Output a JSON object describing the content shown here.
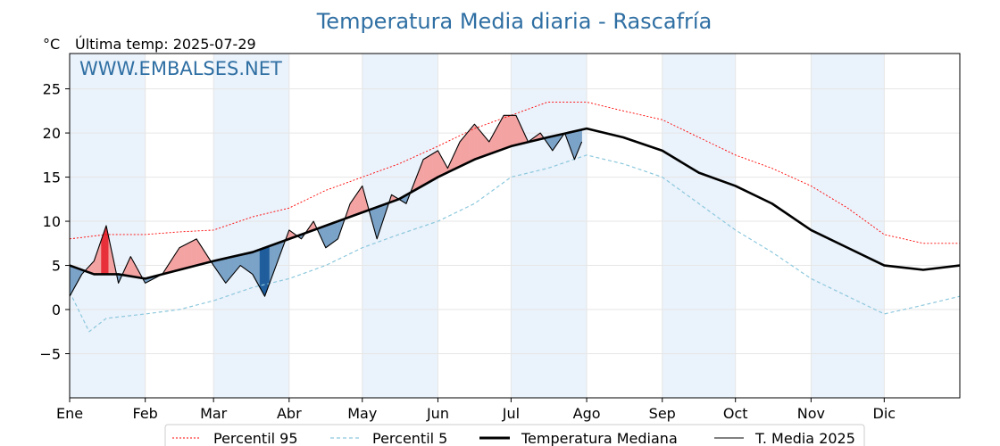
{
  "chart_data": {
    "type": "line",
    "title": "Temperatura Media diaria - Rascafría",
    "unit_label": "°C",
    "subtitle": "Última temp: 2025-07-29",
    "watermark": "WWW.EMBALSES.NET",
    "ylim": [
      -10,
      29
    ],
    "yticks": [
      -5,
      0,
      5,
      10,
      15,
      20,
      25
    ],
    "ytick_labels": [
      "−5",
      "0",
      "5",
      "10",
      "15",
      "20",
      "25"
    ],
    "xlim": [
      0,
      365
    ],
    "months": [
      {
        "label": "Ene",
        "day": 0
      },
      {
        "label": "Feb",
        "day": 31
      },
      {
        "label": "Mar",
        "day": 59
      },
      {
        "label": "Abr",
        "day": 90
      },
      {
        "label": "May",
        "day": 120
      },
      {
        "label": "Jun",
        "day": 151
      },
      {
        "label": "Jul",
        "day": 181
      },
      {
        "label": "Ago",
        "day": 212
      },
      {
        "label": "Sep",
        "day": 243
      },
      {
        "label": "Oct",
        "day": 273
      },
      {
        "label": "Nov",
        "day": 304
      },
      {
        "label": "Dic",
        "day": 334
      }
    ],
    "grid": true,
    "legend_position": "bottom",
    "colors": {
      "p95": "#ff0000",
      "p5": "#8cc8dd",
      "median": "#000000",
      "current": "#000000",
      "above_fill": "#f4a3a3",
      "above_strong": "#e8303a",
      "below_fill": "#7ba3c8",
      "below_strong": "#1f5d9c",
      "band": "#eaf2fb"
    },
    "series": [
      {
        "name": "Percentil 95",
        "key": "p95",
        "x": [
          0,
          15,
          31,
          45,
          59,
          75,
          90,
          105,
          120,
          135,
          151,
          166,
          181,
          196,
          212,
          227,
          243,
          258,
          273,
          288,
          304,
          319,
          334,
          350,
          365
        ],
        "y": [
          8,
          8.5,
          8.5,
          8.8,
          9,
          10.5,
          11.5,
          13.5,
          15,
          16.5,
          18.5,
          20.5,
          22,
          23.5,
          23.5,
          22.5,
          21.5,
          19.5,
          17.5,
          16,
          14,
          11.5,
          8.5,
          7.5,
          7.5
        ]
      },
      {
        "name": "Percentil 5",
        "key": "p5",
        "x": [
          0,
          8,
          15,
          31,
          45,
          59,
          75,
          90,
          105,
          120,
          135,
          151,
          166,
          181,
          196,
          212,
          227,
          243,
          258,
          273,
          288,
          304,
          319,
          334,
          350,
          365
        ],
        "y": [
          2,
          -2.5,
          -1,
          -0.5,
          0,
          1,
          2.5,
          3.5,
          5,
          7,
          8.5,
          10,
          12,
          15,
          16,
          17.5,
          16.5,
          15,
          12,
          9,
          6.5,
          3.5,
          1.5,
          -0.5,
          0.5,
          1.5
        ]
      },
      {
        "name": "Temperatura Mediana",
        "key": "median",
        "x": [
          0,
          10,
          20,
          31,
          45,
          59,
          75,
          90,
          105,
          120,
          135,
          151,
          166,
          181,
          196,
          212,
          227,
          243,
          258,
          273,
          288,
          304,
          319,
          334,
          350,
          365
        ],
        "y": [
          5,
          4,
          4,
          3.5,
          4.5,
          5.5,
          6.5,
          8,
          9.5,
          11,
          12.5,
          15,
          17,
          18.5,
          19.5,
          20.5,
          19.5,
          18,
          15.5,
          14,
          12,
          9,
          7,
          5,
          4.5,
          5
        ]
      },
      {
        "name": "T. Media 2025",
        "key": "current",
        "x": [
          0,
          5,
          10,
          15,
          20,
          25,
          31,
          38,
          45,
          52,
          59,
          64,
          70,
          75,
          80,
          86,
          90,
          95,
          100,
          105,
          110,
          115,
          120,
          126,
          132,
          138,
          145,
          151,
          155,
          160,
          166,
          172,
          178,
          183,
          188,
          193,
          198,
          203,
          207,
          210
        ],
        "y": [
          1.5,
          4,
          5.5,
          9.5,
          3,
          6,
          3,
          4,
          7,
          8,
          5,
          3,
          5,
          4,
          1.5,
          6,
          9,
          8,
          10,
          7,
          8,
          12,
          14,
          8,
          13,
          12,
          17,
          18,
          16,
          19,
          21,
          19,
          22,
          22,
          19,
          20,
          18,
          20,
          17,
          19
        ]
      }
    ]
  },
  "legend": [
    {
      "label": "Percentil 95",
      "key": "p95"
    },
    {
      "label": "Percentil 5",
      "key": "p5"
    },
    {
      "label": "Temperatura Mediana",
      "key": "median"
    },
    {
      "label": "T. Media 2025",
      "key": "current"
    }
  ]
}
